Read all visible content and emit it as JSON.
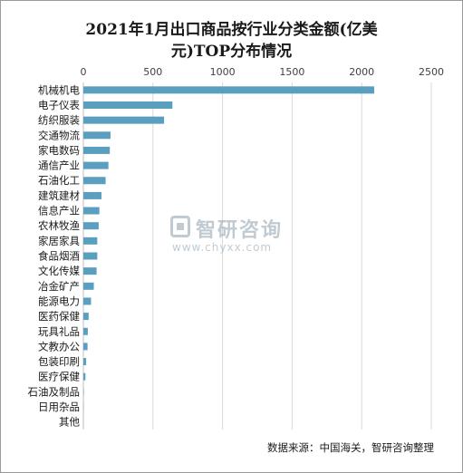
{
  "title": {
    "line1": "2021年1月出口商品按行业分类金额(亿美",
    "line2": "元)TOP分布情况"
  },
  "source": "数据来源：中国海关，智研咨询整理",
  "watermark": {
    "cn": "智研咨询",
    "url": "www.chyxx.com"
  },
  "colors": {
    "bar": "#5b9fc0",
    "grid": "#d9d9d9",
    "axis_text": "#404040"
  },
  "chart_data": {
    "type": "bar",
    "orientation": "horizontal",
    "xlim": [
      0,
      2500
    ],
    "xticks": [
      0,
      500,
      1000,
      1500,
      2000,
      2500
    ],
    "x_axis_position": "top",
    "grid": true,
    "legend": "none",
    "categories": [
      "机械机电",
      "电子仪表",
      "纺织服装",
      "交通物流",
      "家电数码",
      "通信产业",
      "石油化工",
      "建筑建材",
      "信息产业",
      "农林牧渔",
      "家居家具",
      "食品烟酒",
      "文化传媒",
      "冶金矿产",
      "能源电力",
      "医药保健",
      "玩具礼品",
      "文教办公",
      "包装印刷",
      "医疗保健",
      "石油及制品",
      "日用杂品",
      "其他"
    ],
    "values": [
      2090,
      640,
      580,
      195,
      190,
      180,
      160,
      130,
      115,
      110,
      100,
      100,
      95,
      75,
      55,
      38,
      32,
      30,
      20,
      15,
      3,
      2,
      1
    ]
  }
}
